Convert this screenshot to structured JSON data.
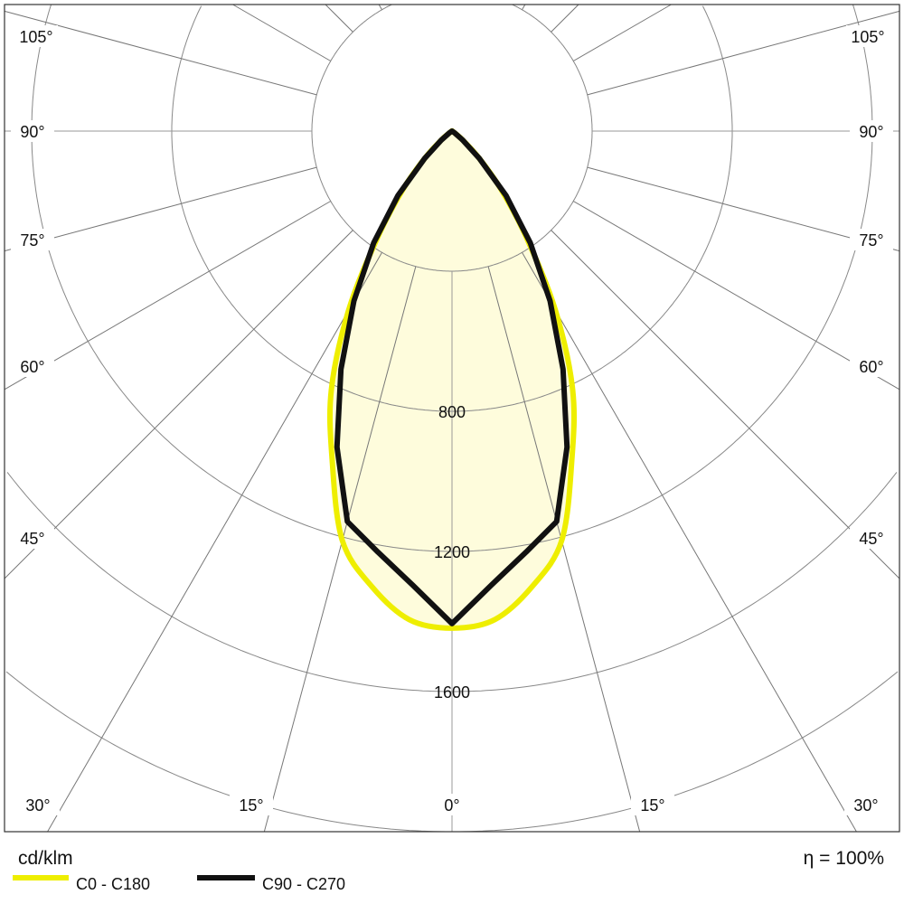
{
  "chart_data": {
    "type": "polar",
    "unit_label": "cd/klm",
    "efficiency_label": "η = 100%",
    "radial_ticks": [
      400,
      800,
      1200,
      1600,
      2000
    ],
    "radial_tick_labels": [
      "800",
      "1200",
      "1600"
    ],
    "radial_tick_label_values": [
      800,
      1200,
      1600
    ],
    "rlim": [
      0,
      2000
    ],
    "angle_step_deg": 15,
    "angle_labels": [
      "105°",
      "90°",
      "75°",
      "60°",
      "45°",
      "30°",
      "15°",
      "0°"
    ],
    "angle_label_values": [
      105,
      90,
      75,
      60,
      45,
      30,
      15,
      0
    ],
    "grid": true,
    "legend_placement": "bottom-left",
    "series": [
      {
        "name": "C0 - C180",
        "color": "#eeee00",
        "angles_deg": [
          0,
          5,
          10,
          15,
          20,
          25,
          30,
          35,
          40,
          45,
          50,
          55,
          60,
          90
        ],
        "values": [
          1419,
          1400,
          1320,
          1210,
          1000,
          815,
          590,
          370,
          220,
          110,
          40,
          10,
          0,
          0
        ]
      },
      {
        "name": "C90 - C270",
        "color": "#111111",
        "angles_deg": [
          0,
          5,
          10,
          15,
          20,
          25,
          30,
          35,
          40,
          45,
          50,
          55,
          60,
          90
        ],
        "values": [
          1406,
          1300,
          1220,
          1154,
          960,
          750,
          560,
          390,
          240,
          110,
          40,
          10,
          0,
          0
        ]
      }
    ],
    "fill_color": "#fefcdc"
  }
}
